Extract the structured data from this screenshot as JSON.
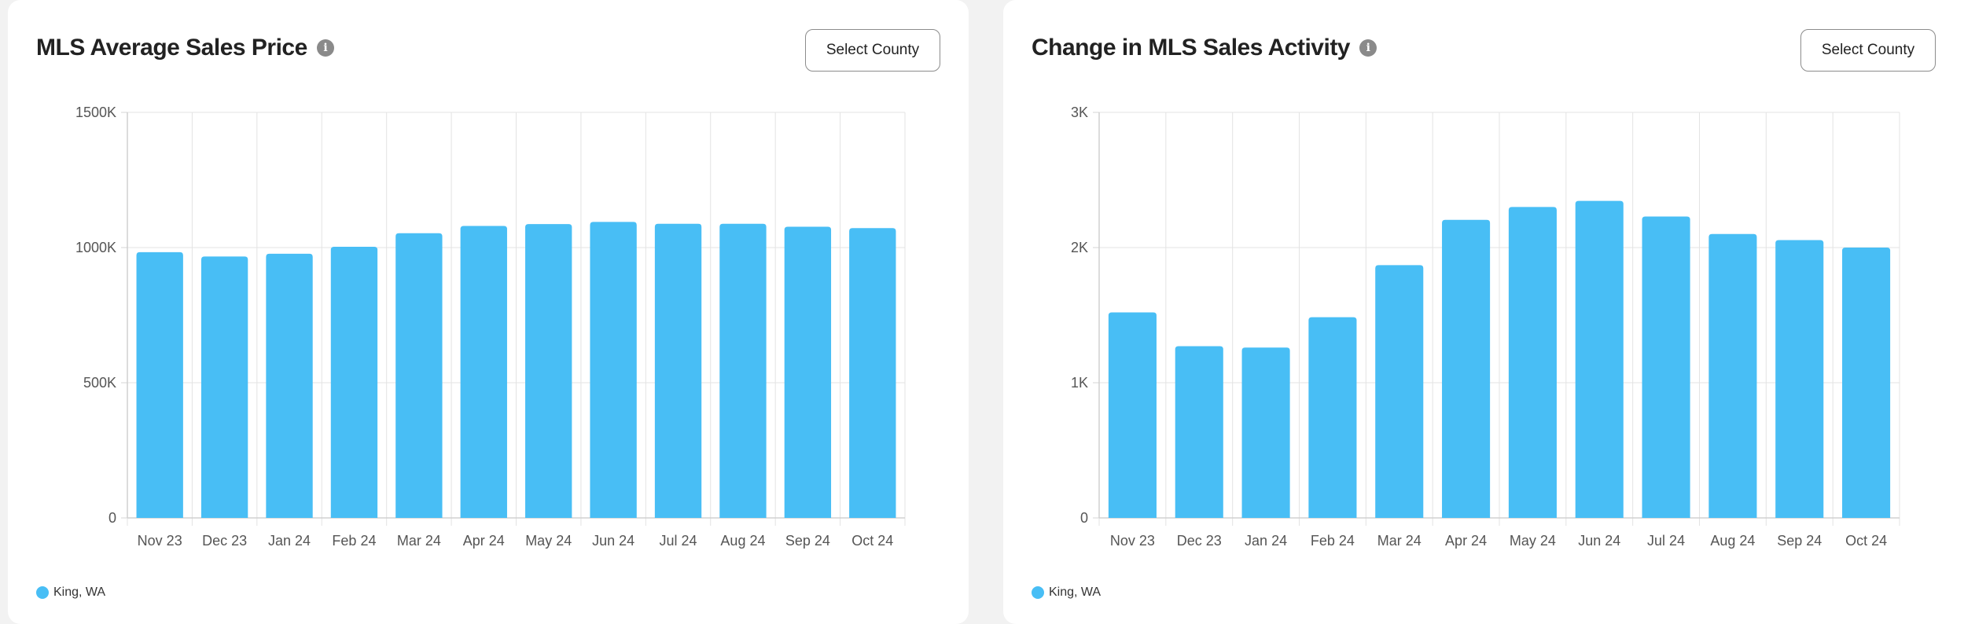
{
  "accent_color": "#48bef5",
  "info_icon_glyph": "i",
  "charts": [
    {
      "title": "MLS Average Sales Price",
      "info_icon": "info-icon",
      "button_label": "Select County",
      "legend_label": "King, WA"
    },
    {
      "title": "Change in MLS Sales Activity",
      "info_icon": "info-icon",
      "button_label": "Select County",
      "legend_label": "King, WA"
    }
  ],
  "chart_data": [
    {
      "type": "bar",
      "title": "MLS Average Sales Price",
      "categories": [
        "Nov 23",
        "Dec 23",
        "Jan 24",
        "Feb 24",
        "Mar 24",
        "Apr 24",
        "May 24",
        "Jun 24",
        "Jul 24",
        "Aug 24",
        "Sep 24",
        "Oct 24"
      ],
      "series": [
        {
          "name": "King, WA",
          "values": [
            983,
            967,
            977,
            1003,
            1053,
            1080,
            1087,
            1095,
            1088,
            1088,
            1077,
            1072
          ]
        }
      ],
      "ylim": [
        0,
        1500
      ],
      "yticks": [
        0,
        500,
        1000,
        1500
      ],
      "ytick_labels": [
        "0",
        "500K",
        "1000K",
        "1500K"
      ],
      "grid": true,
      "legend_position": "bottom-left",
      "color": "#48bef5"
    },
    {
      "type": "bar",
      "title": "Change in MLS Sales Activity",
      "categories": [
        "Nov 23",
        "Dec 23",
        "Jan 24",
        "Feb 24",
        "Mar 24",
        "Apr 24",
        "May 24",
        "Jun 24",
        "Jul 24",
        "Aug 24",
        "Sep 24",
        "Oct 24"
      ],
      "series": [
        {
          "name": "King, WA",
          "values": [
            1520,
            1270,
            1260,
            1485,
            1870,
            2205,
            2300,
            2345,
            2230,
            2100,
            2055,
            2000
          ]
        }
      ],
      "ylim": [
        0,
        3000
      ],
      "yticks": [
        0,
        1000,
        2000,
        3000
      ],
      "ytick_labels": [
        "0",
        "1K",
        "2K",
        "3K"
      ],
      "grid": true,
      "legend_position": "bottom-left",
      "color": "#48bef5"
    }
  ]
}
